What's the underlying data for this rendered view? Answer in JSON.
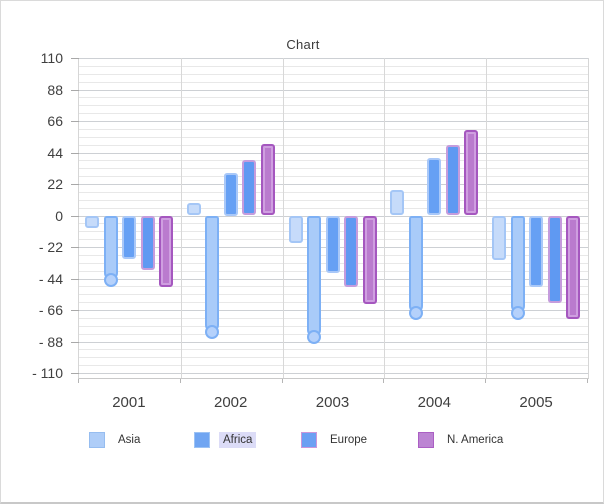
{
  "chart_data": {
    "type": "bar",
    "title": "Chart",
    "categories": [
      "2001",
      "2002",
      "2003",
      "2004",
      "2005"
    ],
    "series": [
      {
        "name": "Asia",
        "in_legend": true,
        "shape": "bar",
        "fill": "#c6dbfa",
        "border": "#a4c6f6",
        "values": [
          -9,
          9,
          -19,
          18,
          -31
        ]
      },
      {
        "name": "",
        "in_legend": false,
        "shape": "rounded-end-bar",
        "fill": "#a9cbf9",
        "border": "#7db0f5",
        "cap_fill": "#b5d1fb",
        "values": [
          -45,
          -81,
          -85,
          -68,
          -68
        ]
      },
      {
        "name": "Africa",
        "in_legend": true,
        "shape": "bar",
        "fill": "#66a0f4",
        "border": "#a9c8f8",
        "values": [
          -30,
          30,
          -40,
          40,
          -50
        ]
      },
      {
        "name": "Europe",
        "in_legend": true,
        "shape": "bar",
        "fill": "#5f99f2",
        "border": "#c59cdd",
        "values": [
          -38,
          39,
          -50,
          49,
          -61
        ]
      },
      {
        "name": "N. America",
        "in_legend": true,
        "shape": "bar",
        "fill": "#ba7bce",
        "border": "#a557bf",
        "inner_highlight": "#cf9fe0",
        "values": [
          -50,
          50,
          -62,
          60,
          -72
        ]
      }
    ],
    "y_axis": {
      "min": -110,
      "max": 110,
      "major_step": 22,
      "minor_step": 5.5,
      "ticks": [
        {
          "label": "110",
          "value": 110
        },
        {
          "label": "88",
          "value": 88
        },
        {
          "label": "66",
          "value": 66
        },
        {
          "label": "44",
          "value": 44
        },
        {
          "label": "22",
          "value": 22
        },
        {
          "label": "0",
          "value": 0
        },
        {
          "label": "- 22",
          "value": -22
        },
        {
          "label": "- 44",
          "value": -44
        },
        {
          "label": "- 66",
          "value": -66
        },
        {
          "label": "- 88",
          "value": -88
        },
        {
          "label": "- 110",
          "value": -110
        }
      ]
    },
    "grid": {
      "major": true,
      "minor": true
    },
    "legend": {
      "position": "bottom",
      "items": [
        {
          "label": "Asia",
          "swatch_fill": "#aecdf8",
          "swatch_border": "#96bdf0",
          "highlighted": false
        },
        {
          "label": "Africa",
          "swatch_fill": "#70a5f2",
          "swatch_border": "#9cc2f4",
          "highlighted": true,
          "highlight_color": "#dcdcf7"
        },
        {
          "label": "Europe",
          "swatch_fill": "#6ba0f3",
          "swatch_border": "#cb97da",
          "highlighted": false
        },
        {
          "label": "N. America",
          "swatch_fill": "#bc84d3",
          "swatch_border": "#ab5fc4",
          "highlighted": false
        }
      ]
    }
  }
}
